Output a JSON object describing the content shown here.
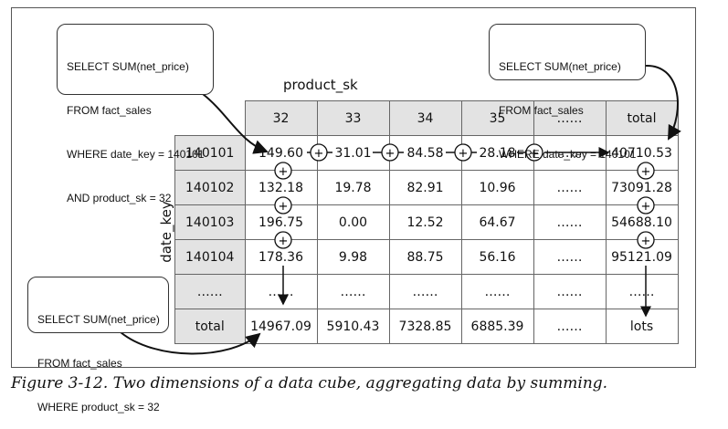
{
  "caption": "Figure 3-12. Two dimensions of a data cube, aggregating data by summing.",
  "axes": {
    "columns_label": "product_sk",
    "rows_label": "date_key"
  },
  "queries": {
    "by_date_and_product": [
      "SELECT SUM(net_price)",
      "FROM fact_sales",
      "WHERE date_key = 140101",
      "AND product_sk = 32"
    ],
    "by_date": [
      "SELECT SUM(net_price)",
      "FROM fact_sales",
      "WHERE date_key = 140101"
    ],
    "by_product": [
      "SELECT SUM(net_price)",
      "FROM fact_sales",
      "WHERE product_sk = 32"
    ]
  },
  "table": {
    "columns": [
      "32",
      "33",
      "34",
      "35",
      "……",
      "total"
    ],
    "rows": [
      {
        "key": "140101",
        "cells": [
          "149.60",
          "31.01",
          "84.58",
          "28.18",
          "……",
          "40710.53"
        ]
      },
      {
        "key": "140102",
        "cells": [
          "132.18",
          "19.78",
          "82.91",
          "10.96",
          "……",
          "73091.28"
        ]
      },
      {
        "key": "140103",
        "cells": [
          "196.75",
          "0.00",
          "12.52",
          "64.67",
          "……",
          "54688.10"
        ]
      },
      {
        "key": "140104",
        "cells": [
          "178.36",
          "9.98",
          "88.75",
          "56.16",
          "……",
          "95121.09"
        ]
      },
      {
        "key": "……",
        "cells": [
          "……",
          "……",
          "……",
          "……",
          "……",
          "……"
        ]
      },
      {
        "key": "total",
        "cells": [
          "14967.09",
          "5910.43",
          "7328.85",
          "6885.39",
          "……",
          "lots"
        ]
      }
    ]
  },
  "operator_symbol": "+"
}
